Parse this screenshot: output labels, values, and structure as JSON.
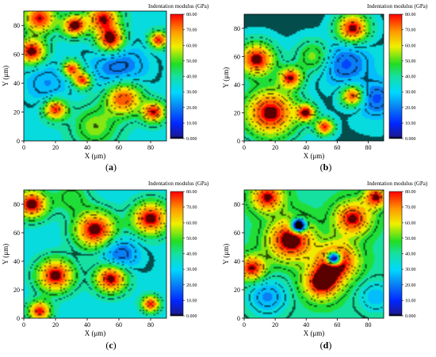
{
  "figure": {
    "panels": [
      {
        "label": "(a)",
        "letter": "a"
      },
      {
        "label": "(b)",
        "letter": "b"
      },
      {
        "label": "(c)",
        "letter": "c"
      },
      {
        "label": "(d)",
        "letter": "d"
      }
    ]
  },
  "colorbar": {
    "title": "Indentation modulus (GPa)",
    "ticks": [
      "0.000",
      "10.00",
      "20.00",
      "30.00",
      "40.00",
      "50.00",
      "60.00",
      "70.00",
      "80.00"
    ],
    "stops": [
      {
        "v": 0,
        "color": "#000000"
      },
      {
        "v": 0.02,
        "color": "#1a1a9a"
      },
      {
        "v": 0.12,
        "color": "#0026ff"
      },
      {
        "v": 0.25,
        "color": "#0a7ff5"
      },
      {
        "v": 0.37,
        "color": "#00d8ff"
      },
      {
        "v": 0.5,
        "color": "#16e0a0"
      },
      {
        "v": 0.6,
        "color": "#22dd22"
      },
      {
        "v": 0.74,
        "color": "#f0f000"
      },
      {
        "v": 0.86,
        "color": "#ff9900"
      },
      {
        "v": 1.0,
        "color": "#ff0000"
      }
    ]
  },
  "chart_data": [
    {
      "type": "heatmap",
      "panel": "(a)",
      "xlabel": "X (μm)",
      "ylabel": "Y (μm)",
      "xlim": [
        0,
        90
      ],
      "ylim": [
        0,
        90
      ],
      "xticks": [
        "0",
        "20",
        "40",
        "60",
        "80"
      ],
      "yticks": [
        "0",
        "20",
        "40",
        "60",
        "80"
      ],
      "colorbar_label": "Indentation modulus (GPa)",
      "zlim": [
        0,
        80
      ],
      "base": 35,
      "blobs": [
        {
          "x": 10,
          "y": 85,
          "a": 45,
          "s": 7
        },
        {
          "x": 50,
          "y": 85,
          "a": 45,
          "s": 7
        },
        {
          "x": 32,
          "y": 80,
          "a": 50,
          "s": 5
        },
        {
          "x": 55,
          "y": 70,
          "a": 50,
          "s": 6
        },
        {
          "x": 5,
          "y": 62,
          "a": 50,
          "s": 6
        },
        {
          "x": 85,
          "y": 70,
          "a": 45,
          "s": 4
        },
        {
          "x": 30,
          "y": 50,
          "a": 45,
          "s": 4
        },
        {
          "x": 37,
          "y": 42,
          "a": 45,
          "s": 4
        },
        {
          "x": 20,
          "y": 22,
          "a": 45,
          "s": 5
        },
        {
          "x": 63,
          "y": 30,
          "a": 45,
          "s": 8
        },
        {
          "x": 82,
          "y": 20,
          "a": 45,
          "s": 5
        },
        {
          "x": 45,
          "y": 10,
          "a": 18,
          "s": 10
        },
        {
          "x": 60,
          "y": 50,
          "a": -18,
          "s": 12
        },
        {
          "x": 15,
          "y": 40,
          "a": -12,
          "s": 10
        }
      ]
    },
    {
      "type": "heatmap",
      "panel": "(b)",
      "xlabel": "X (μm)",
      "ylabel": "Y (μm)",
      "xlim": [
        0,
        90
      ],
      "ylim": [
        0,
        90
      ],
      "xticks": [
        "0",
        "20",
        "40",
        "60",
        "80"
      ],
      "yticks": [
        "0",
        "20",
        "40",
        "60",
        "80"
      ],
      "colorbar_label": "Indentation modulus (GPa)",
      "zlim": [
        0,
        80
      ],
      "base": 33,
      "blobs": [
        {
          "x": 8,
          "y": 58,
          "a": 50,
          "s": 8
        },
        {
          "x": 17,
          "y": 20,
          "a": 50,
          "s": 12
        },
        {
          "x": 40,
          "y": 20,
          "a": 45,
          "s": 4
        },
        {
          "x": 52,
          "y": 10,
          "a": 45,
          "s": 4
        },
        {
          "x": 30,
          "y": 45,
          "a": 45,
          "s": 5
        },
        {
          "x": 70,
          "y": 80,
          "a": 50,
          "s": 7
        },
        {
          "x": 70,
          "y": 32,
          "a": 45,
          "s": 5
        },
        {
          "x": 45,
          "y": 60,
          "a": 20,
          "s": 8
        },
        {
          "x": 65,
          "y": 55,
          "a": -18,
          "s": 10
        },
        {
          "x": 85,
          "y": 30,
          "a": -18,
          "s": 8
        }
      ]
    },
    {
      "type": "heatmap",
      "panel": "(c)",
      "xlabel": "X (μm)",
      "ylabel": "Y (μm)",
      "xlim": [
        0,
        90
      ],
      "ylim": [
        0,
        90
      ],
      "xticks": [
        "0",
        "20",
        "40",
        "60",
        "80"
      ],
      "yticks": [
        "0",
        "20",
        "40",
        "60",
        "80"
      ],
      "colorbar_label": "Indentation modulus (GPa)",
      "zlim": [
        0,
        80
      ],
      "base": 34,
      "blobs": [
        {
          "x": 5,
          "y": 80,
          "a": 50,
          "s": 7
        },
        {
          "x": 45,
          "y": 62,
          "a": 50,
          "s": 9
        },
        {
          "x": 80,
          "y": 70,
          "a": 50,
          "s": 8
        },
        {
          "x": 20,
          "y": 30,
          "a": 50,
          "s": 8
        },
        {
          "x": 55,
          "y": 28,
          "a": 50,
          "s": 7
        },
        {
          "x": 10,
          "y": 5,
          "a": 45,
          "s": 5
        },
        {
          "x": 80,
          "y": 10,
          "a": 45,
          "s": 4
        },
        {
          "x": 60,
          "y": 45,
          "a": -20,
          "s": 8
        },
        {
          "x": 30,
          "y": 85,
          "a": 15,
          "s": 8
        }
      ]
    },
    {
      "type": "heatmap",
      "panel": "(d)",
      "xlabel": "X (μm)",
      "ylabel": "Y (μm)",
      "xlim": [
        0,
        90
      ],
      "ylim": [
        0,
        90
      ],
      "xticks": [
        "0",
        "20",
        "40",
        "60",
        "80"
      ],
      "yticks": [
        "0",
        "20",
        "40",
        "60",
        "80"
      ],
      "colorbar_label": "Indentation modulus (GPa)",
      "zlim": [
        0,
        80
      ],
      "base": 42,
      "blobs": [
        {
          "x": 30,
          "y": 55,
          "a": 45,
          "s": 10
        },
        {
          "x": 60,
          "y": 40,
          "a": 45,
          "s": 9
        },
        {
          "x": 50,
          "y": 25,
          "a": 45,
          "s": 8
        },
        {
          "x": 70,
          "y": 70,
          "a": 40,
          "s": 8
        },
        {
          "x": 15,
          "y": 85,
          "a": 40,
          "s": 7
        },
        {
          "x": 5,
          "y": 35,
          "a": 40,
          "s": 6
        },
        {
          "x": 85,
          "y": 85,
          "a": 40,
          "s": 5
        },
        {
          "x": 35,
          "y": 65,
          "a": -90,
          "s": 3
        },
        {
          "x": 58,
          "y": 42,
          "a": -85,
          "s": 3
        },
        {
          "x": 15,
          "y": 15,
          "a": -20,
          "s": 9
        },
        {
          "x": 85,
          "y": 15,
          "a": -15,
          "s": 8
        }
      ]
    }
  ]
}
